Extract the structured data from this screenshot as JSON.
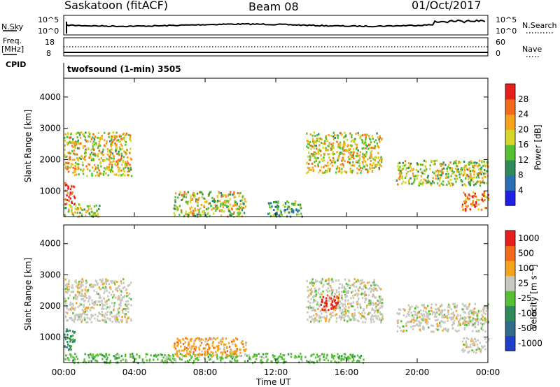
{
  "header": {
    "station": "Saskatoon (fitACF)",
    "beam": "Beam 08",
    "date": "01/Oct/2017"
  },
  "top_panels": {
    "nsky_label": "N.Sky",
    "nsky_ticks": [
      "10^5",
      "10^0"
    ],
    "nsearch_label": "N.Search",
    "nsearch_ticks": [
      "10^5",
      "10^0"
    ],
    "freq_label": "Freq.",
    "freq_unit": "[MHz]",
    "freq_ticks": [
      "18",
      "8"
    ],
    "nave_label": "Nave",
    "nave_ticks": [
      "60",
      "0"
    ],
    "cpid_label": "CPID",
    "cpid_text": "twofsound (1-min) 3505"
  },
  "chart_data": [
    {
      "type": "heatmap",
      "name": "power",
      "ylabel": "Slant Range [km]",
      "ylim": [
        180,
        4600
      ],
      "yticks": [
        "1000",
        "2000",
        "3000",
        "4000"
      ],
      "xlim": [
        0,
        24
      ],
      "xticks": [
        "00:00",
        "04:00",
        "08:00",
        "12:00",
        "16:00",
        "20:00",
        "00:00"
      ],
      "colorbar_label": "Power [dB]",
      "colorbar_ticks": [
        "4",
        "8",
        "12",
        "16",
        "20",
        "24",
        "28"
      ],
      "colorbar_colors": [
        "#1f1fe6",
        "#2a6fb4",
        "#2f8a5a",
        "#55c034",
        "#d6d62a",
        "#f5a21e",
        "#f26a1a",
        "#e5201c"
      ],
      "regions": [
        {
          "t": [
            0.0,
            3.8
          ],
          "r": [
            1500,
            2900
          ],
          "level": 0.6
        },
        {
          "t": [
            0.0,
            0.6
          ],
          "r": [
            600,
            1300
          ],
          "level": 0.95
        },
        {
          "t": [
            0.0,
            2.0
          ],
          "r": [
            200,
            600
          ],
          "level": 0.5
        },
        {
          "t": [
            6.2,
            10.3
          ],
          "r": [
            200,
            1000
          ],
          "level": 0.55
        },
        {
          "t": [
            11.5,
            13.5
          ],
          "r": [
            200,
            700
          ],
          "level": 0.35
        },
        {
          "t": [
            13.7,
            18.0
          ],
          "r": [
            1600,
            2900
          ],
          "level": 0.6
        },
        {
          "t": [
            18.8,
            24.0
          ],
          "r": [
            1200,
            2000
          ],
          "level": 0.55
        },
        {
          "t": [
            22.5,
            24.0
          ],
          "r": [
            400,
            1000
          ],
          "level": 0.85
        }
      ]
    },
    {
      "type": "heatmap",
      "name": "velocity",
      "ylabel": "Slant Range [km]",
      "ylim": [
        180,
        4600
      ],
      "yticks": [
        "1000",
        "2000",
        "3000",
        "4000"
      ],
      "xlim": [
        0,
        24
      ],
      "xticks": [
        "00:00",
        "04:00",
        "08:00",
        "12:00",
        "16:00",
        "20:00",
        "00:00"
      ],
      "xlabel": "Time UT",
      "colorbar_label": "Velocity [m s⁻¹]",
      "colorbar_ticks": [
        "1000",
        "500",
        "100",
        "25",
        "-25",
        "-100",
        "-500",
        "-1000"
      ],
      "colorbar_colors": [
        "#1f3fc8",
        "#2f6b8a",
        "#2f8a5a",
        "#55c034",
        "#c8c8c0",
        "#f5a21e",
        "#f26a1a",
        "#e5201c"
      ],
      "regions": [
        {
          "t": [
            0.0,
            3.8
          ],
          "r": [
            1500,
            2900
          ],
          "cat": 4
        },
        {
          "t": [
            0.0,
            0.6
          ],
          "r": [
            600,
            1300
          ],
          "cat": 2
        },
        {
          "t": [
            0.0,
            12.0
          ],
          "r": [
            200,
            500
          ],
          "cat": 3
        },
        {
          "t": [
            6.2,
            10.3
          ],
          "r": [
            400,
            1000
          ],
          "cat": 5
        },
        {
          "t": [
            12.0,
            17.0
          ],
          "r": [
            200,
            500
          ],
          "cat": 3
        },
        {
          "t": [
            13.7,
            18.0
          ],
          "r": [
            1500,
            2900
          ],
          "cat": 4
        },
        {
          "t": [
            14.5,
            15.5
          ],
          "r": [
            1900,
            2400
          ],
          "cat": 7
        },
        {
          "t": [
            18.8,
            24.0
          ],
          "r": [
            1200,
            2100
          ],
          "cat": 4
        },
        {
          "t": [
            22.5,
            24.0
          ],
          "r": [
            500,
            1000
          ],
          "cat": 4
        }
      ]
    }
  ]
}
